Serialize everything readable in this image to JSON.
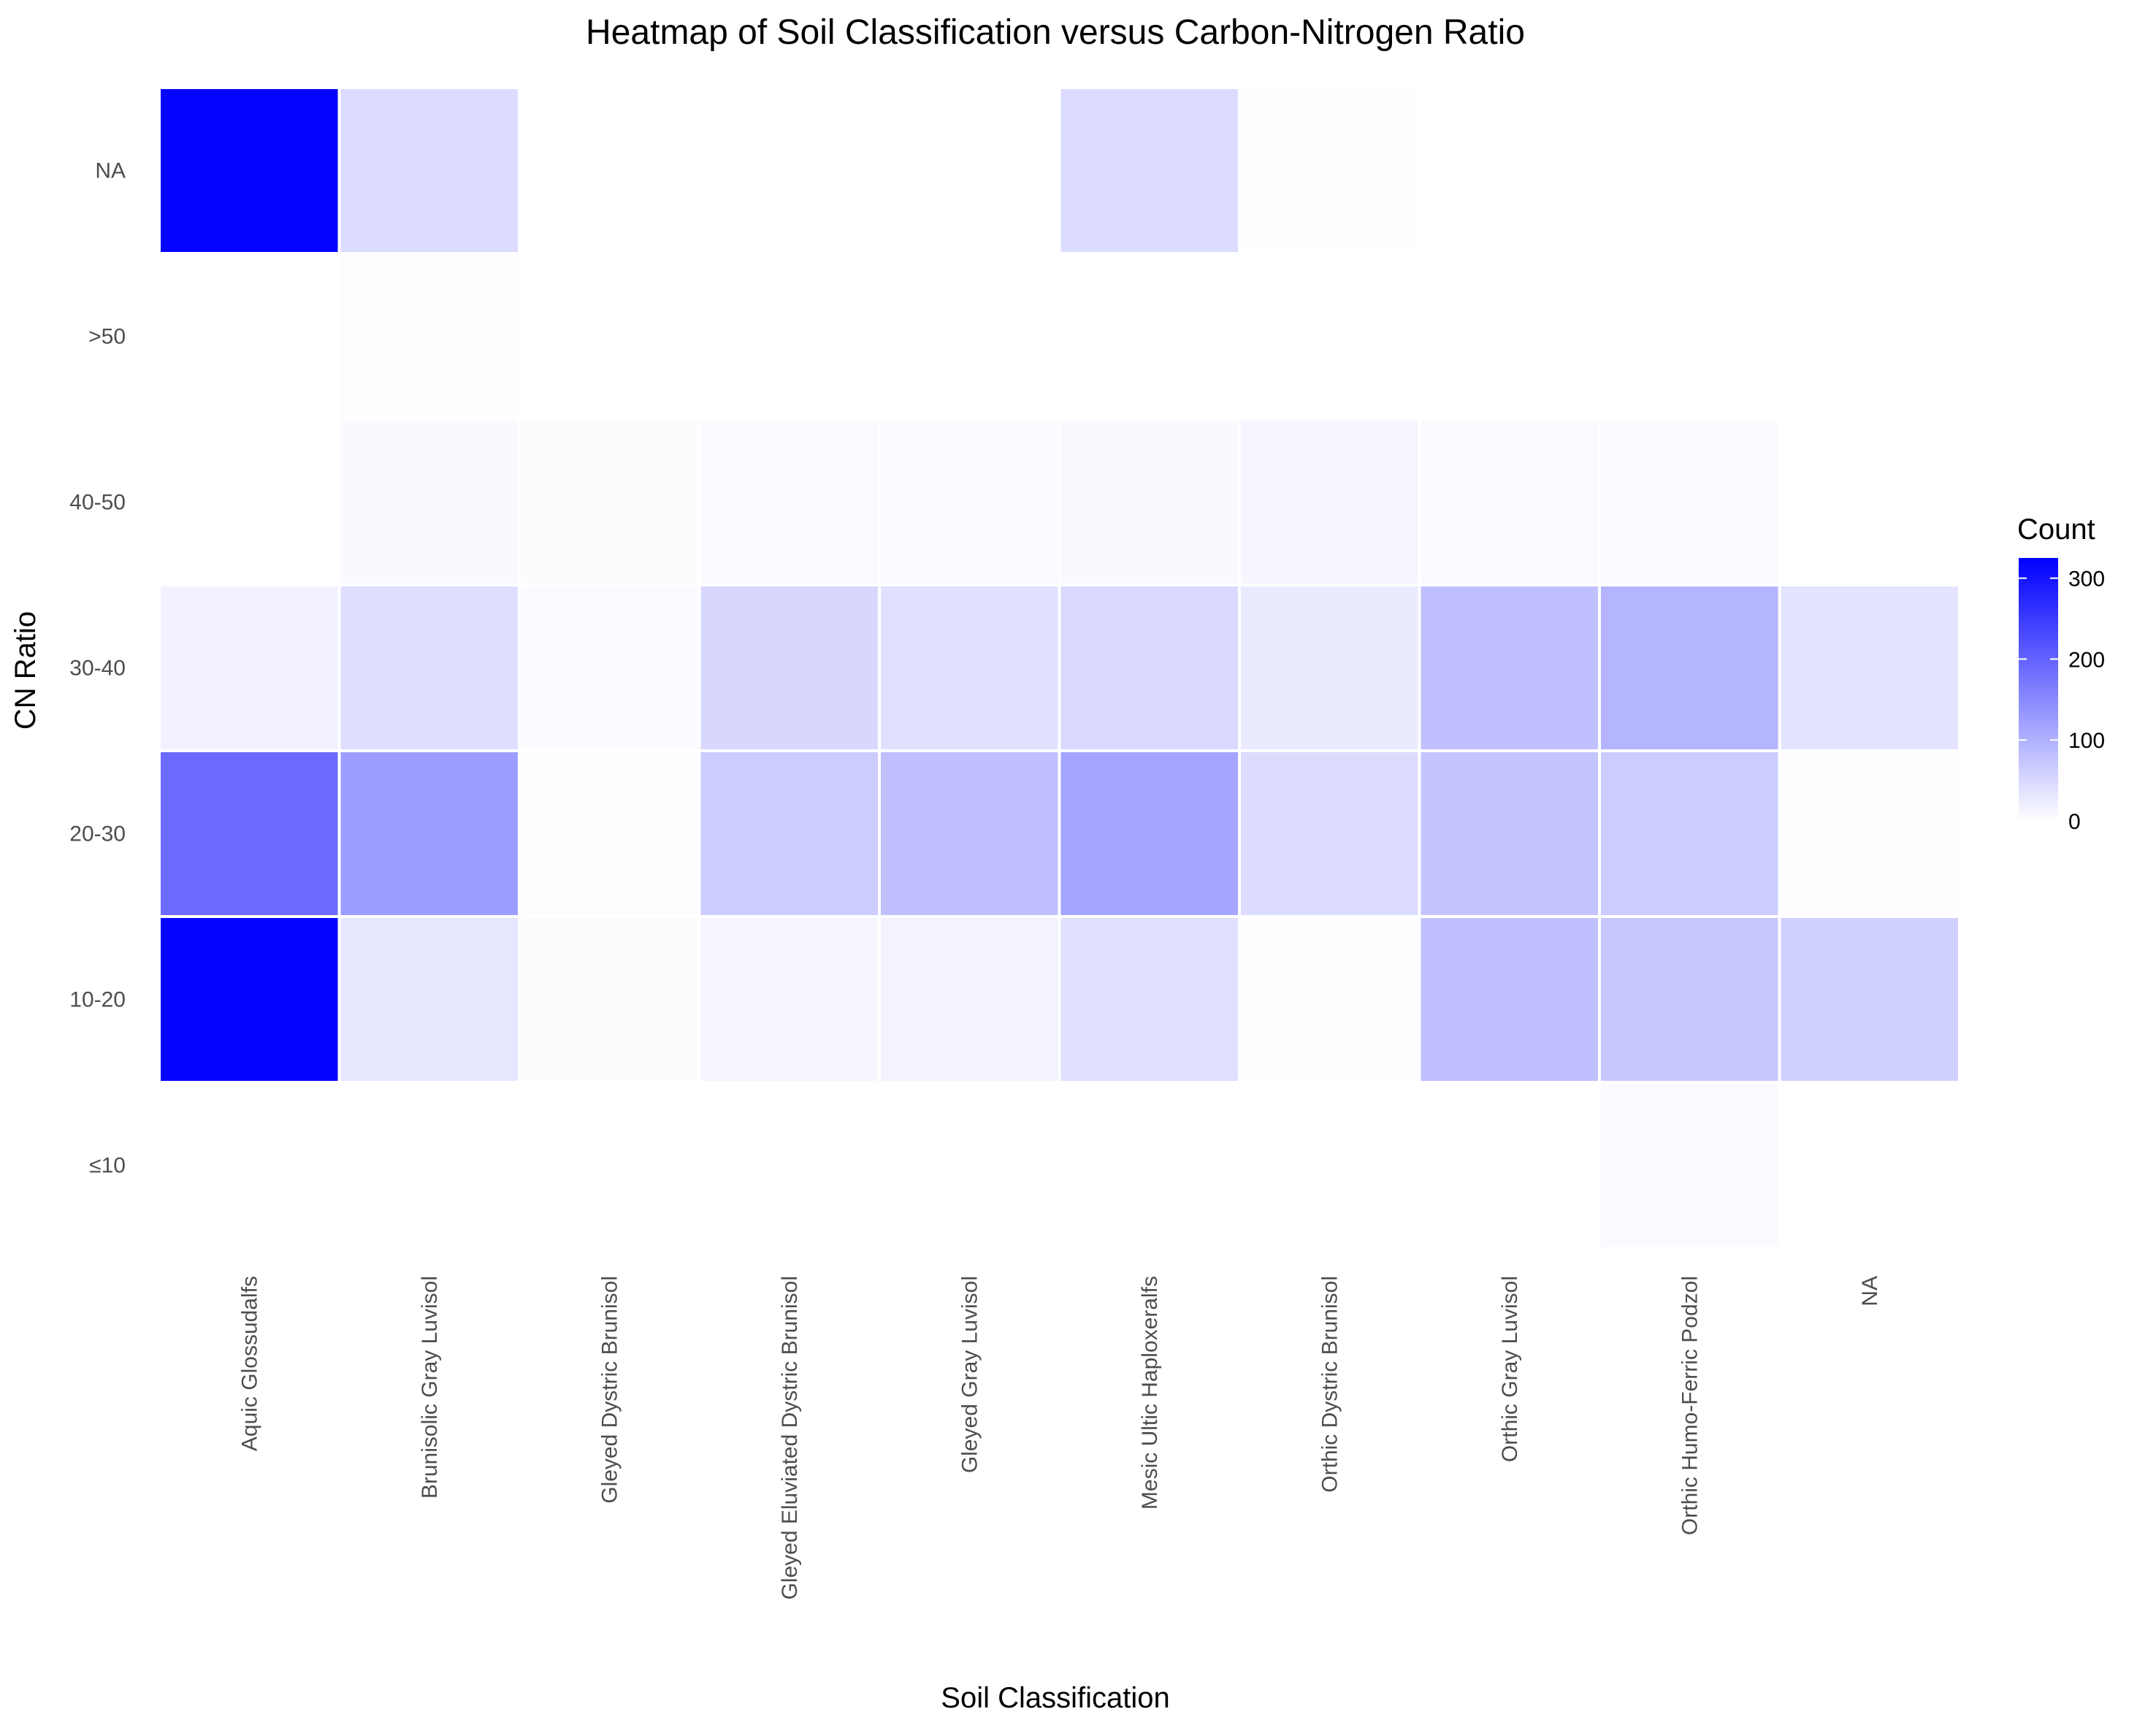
{
  "chart_data": {
    "type": "heatmap",
    "title": "Heatmap of Soil Classification versus Carbon-Nitrogen Ratio",
    "xlabel": "Soil Classification",
    "ylabel": "CN Ratio",
    "x_categories": [
      "Aquic Glossudalfs",
      "Brunisolic Gray Luvisol",
      "Gleyed Dystric Brunisol",
      "Gleyed Eluviated Dystric Brunisol",
      "Gleyed Gray Luvisol",
      "Mesic Ultic Haploxeralfs",
      "Orthic Dystric Brunisol",
      "Orthic Gray Luvisol",
      "Orthic Humo-Ferric Podzol",
      "NA"
    ],
    "y_categories": [
      "NA",
      ">50",
      "40-50",
      "30-40",
      "20-30",
      "10-20",
      "≤10"
    ],
    "cells": [
      {
        "x": "Aquic Glossudalfs",
        "y": "NA",
        "value": 320
      },
      {
        "x": "Brunisolic Gray Luvisol",
        "y": "NA",
        "value": 45
      },
      {
        "x": "Mesic Ultic Haploxeralfs",
        "y": "NA",
        "value": 45
      },
      {
        "x": "Orthic Dystric Brunisol",
        "y": "NA",
        "value": 1
      },
      {
        "x": "Brunisolic Gray Luvisol",
        "y": ">50",
        "value": 3
      },
      {
        "x": "Brunisolic Gray Luvisol",
        "y": "40-50",
        "value": 8
      },
      {
        "x": "Gleyed Dystric Brunisol",
        "y": "40-50",
        "value": 4
      },
      {
        "x": "Gleyed Eluviated Dystric Brunisol",
        "y": "40-50",
        "value": 7
      },
      {
        "x": "Gleyed Gray Luvisol",
        "y": "40-50",
        "value": 6
      },
      {
        "x": "Mesic Ultic Haploxeralfs",
        "y": "40-50",
        "value": 8
      },
      {
        "x": "Orthic Dystric Brunisol",
        "y": "40-50",
        "value": 12
      },
      {
        "x": "Orthic Gray Luvisol",
        "y": "40-50",
        "value": 7
      },
      {
        "x": "Orthic Humo-Ferric Podzol",
        "y": "40-50",
        "value": 7
      },
      {
        "x": "Aquic Glossudalfs",
        "y": "30-40",
        "value": 18
      },
      {
        "x": "Brunisolic Gray Luvisol",
        "y": "30-40",
        "value": 42
      },
      {
        "x": "Gleyed Dystric Brunisol",
        "y": "30-40",
        "value": 6
      },
      {
        "x": "Gleyed Eluviated Dystric Brunisol",
        "y": "30-40",
        "value": 50
      },
      {
        "x": "Gleyed Gray Luvisol",
        "y": "30-40",
        "value": 38
      },
      {
        "x": "Mesic Ultic Haploxeralfs",
        "y": "30-40",
        "value": 48
      },
      {
        "x": "Orthic Dystric Brunisol",
        "y": "30-40",
        "value": 25
      },
      {
        "x": "Orthic Gray Luvisol",
        "y": "30-40",
        "value": 80
      },
      {
        "x": "Orthic Humo-Ferric Podzol",
        "y": "30-40",
        "value": 95
      },
      {
        "x": "NA",
        "y": "30-40",
        "value": 35
      },
      {
        "x": "Aquic Glossudalfs",
        "y": "20-30",
        "value": 190
      },
      {
        "x": "Brunisolic Gray Luvisol",
        "y": "20-30",
        "value": 125
      },
      {
        "x": "Gleyed Dystric Brunisol",
        "y": "20-30",
        "value": 3
      },
      {
        "x": "Gleyed Eluviated Dystric Brunisol",
        "y": "20-30",
        "value": 65
      },
      {
        "x": "Gleyed Gray Luvisol",
        "y": "20-30",
        "value": 80
      },
      {
        "x": "Mesic Ultic Haploxeralfs",
        "y": "20-30",
        "value": 115
      },
      {
        "x": "Orthic Dystric Brunisol",
        "y": "20-30",
        "value": 45
      },
      {
        "x": "Orthic Gray Luvisol",
        "y": "20-30",
        "value": 75
      },
      {
        "x": "Orthic Humo-Ferric Podzol",
        "y": "20-30",
        "value": 65
      },
      {
        "x": "NA",
        "y": "20-30",
        "value": 1
      },
      {
        "x": "Aquic Glossudalfs",
        "y": "10-20",
        "value": 320
      },
      {
        "x": "Brunisolic Gray Luvisol",
        "y": "10-20",
        "value": 30
      },
      {
        "x": "Gleyed Dystric Brunisol",
        "y": "10-20",
        "value": 4
      },
      {
        "x": "Gleyed Eluviated Dystric Brunisol",
        "y": "10-20",
        "value": 12
      },
      {
        "x": "Gleyed Gray Luvisol",
        "y": "10-20",
        "value": 15
      },
      {
        "x": "Mesic Ultic Haploxeralfs",
        "y": "10-20",
        "value": 40
      },
      {
        "x": "Orthic Dystric Brunisol",
        "y": "10-20",
        "value": 3
      },
      {
        "x": "Orthic Gray Luvisol",
        "y": "10-20",
        "value": 80
      },
      {
        "x": "Orthic Humo-Ferric Podzol",
        "y": "10-20",
        "value": 72
      },
      {
        "x": "NA",
        "y": "10-20",
        "value": 60
      },
      {
        "x": "Orthic Humo-Ferric Podzol",
        "y": "≤10",
        "value": 5
      }
    ],
    "legend": {
      "title": "Count",
      "position": "right",
      "breaks": [
        0,
        100,
        200,
        300
      ],
      "limits": [
        0,
        325
      ],
      "low_color": "#ffffff",
      "high_color": "#0000ff"
    },
    "grid": false
  }
}
